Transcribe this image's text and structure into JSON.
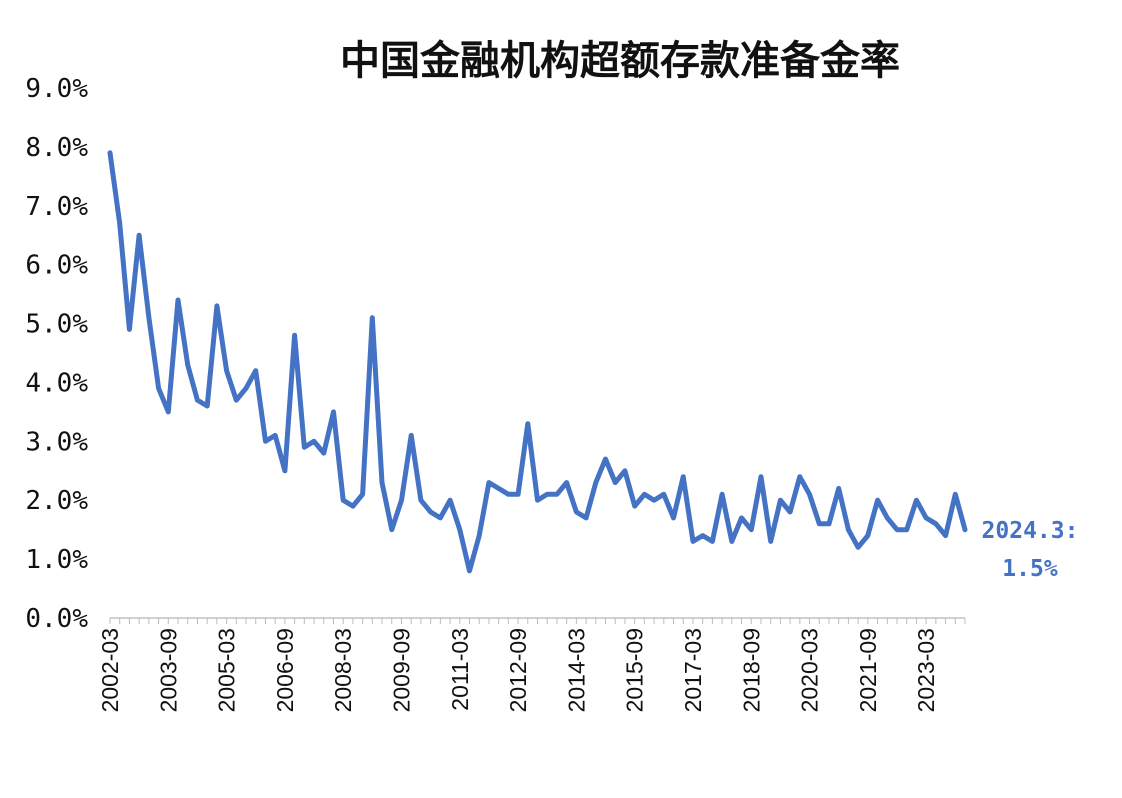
{
  "chart_data": {
    "type": "line",
    "title": "中国金融机构超额存款准备金率",
    "xlabel": "",
    "ylabel": "",
    "ylim": [
      0,
      9
    ],
    "y_ticks": [
      "0.0%",
      "1.0%",
      "2.0%",
      "3.0%",
      "4.0%",
      "5.0%",
      "6.0%",
      "7.0%",
      "8.0%",
      "9.0%"
    ],
    "x_ticks": [
      "2002-03",
      "2003-09",
      "2005-03",
      "2006-09",
      "2008-03",
      "2009-09",
      "2011-03",
      "2012-09",
      "2014-03",
      "2015-09",
      "2017-03",
      "2018-09",
      "2020-03",
      "2021-09",
      "2023-03"
    ],
    "grid": false,
    "line_color": "#4472c4",
    "annotation": {
      "line1": "2024.3:",
      "line2": "1.5%"
    },
    "series": [
      {
        "values": [
          7.9,
          6.7,
          4.9,
          6.5,
          5.1,
          3.9,
          3.5,
          5.4,
          4.3,
          3.7,
          3.6,
          5.3,
          4.2,
          3.7,
          3.9,
          4.2,
          3.0,
          3.1,
          2.5,
          4.8,
          2.9,
          3.0,
          2.8,
          3.5,
          2.0,
          1.9,
          2.1,
          5.1,
          2.3,
          1.5,
          2.0,
          3.1,
          2.0,
          1.8,
          1.7,
          2.0,
          1.5,
          0.8,
          1.4,
          2.3,
          2.2,
          2.1,
          2.1,
          3.3,
          2.0,
          2.1,
          2.1,
          2.3,
          1.8,
          1.7,
          2.3,
          2.7,
          2.3,
          2.5,
          1.9,
          2.1,
          2.0,
          2.1,
          1.7,
          2.4,
          1.3,
          1.4,
          1.3,
          2.1,
          1.3,
          1.7,
          1.5,
          2.4,
          1.3,
          2.0,
          1.8,
          2.4,
          2.1,
          1.6,
          1.6,
          2.2,
          1.5,
          1.2,
          1.4,
          2.0,
          1.7,
          1.5,
          1.5,
          2.0,
          1.7,
          1.6,
          1.4,
          2.1,
          1.5
        ]
      }
    ]
  }
}
